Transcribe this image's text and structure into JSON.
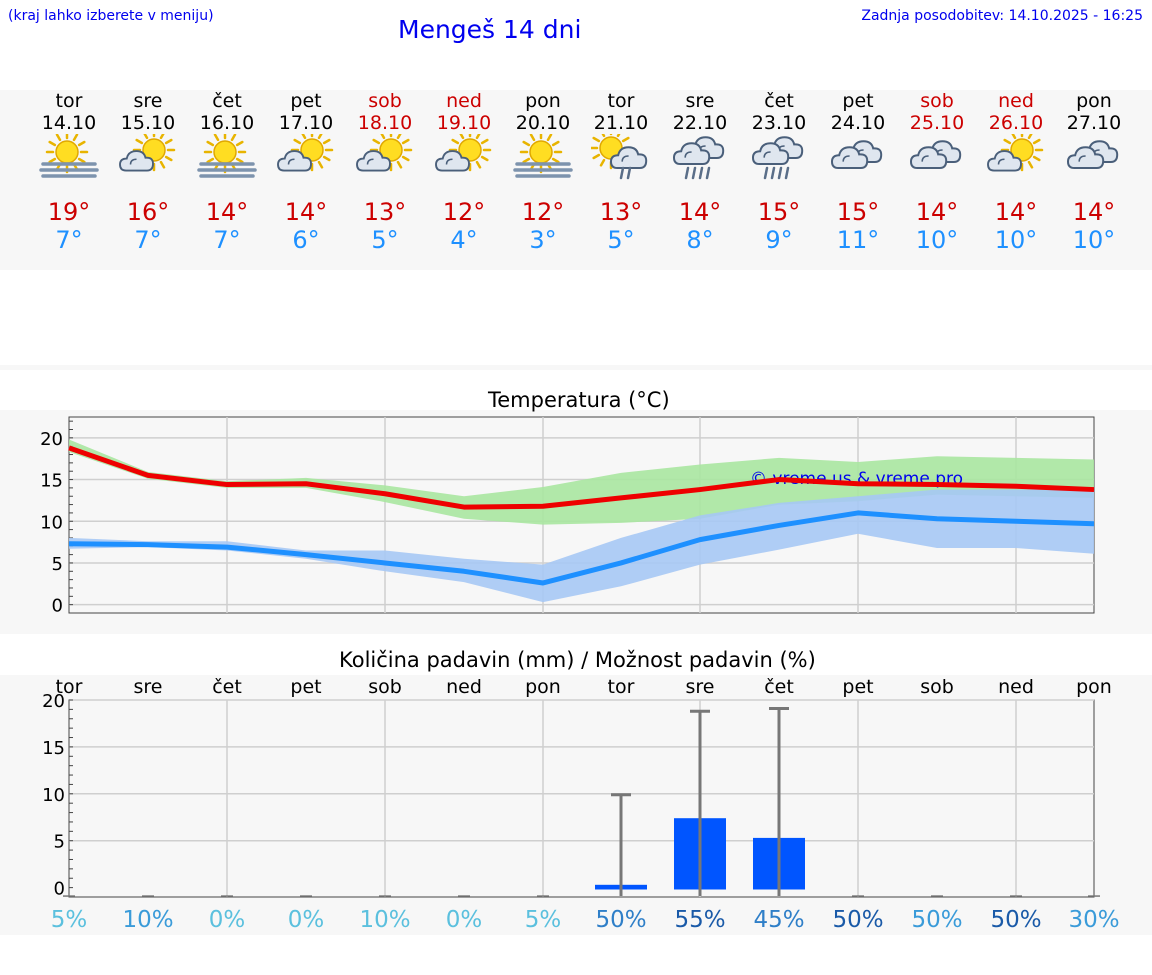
{
  "header": {
    "hint": "(kraj lahko izberete v meniju)",
    "title": "Mengeš 14 dni",
    "updated": "Zadnja posodobitev: 14.10.2025 - 16:25"
  },
  "days": [
    {
      "name": "tor",
      "date": "14.10",
      "weekend": false,
      "icon": "sun-fog-icon",
      "tmax": "19°",
      "tmin": "7°"
    },
    {
      "name": "sre",
      "date": "15.10",
      "weekend": false,
      "icon": "partly-cloudy-icon",
      "tmax": "16°",
      "tmin": "7°"
    },
    {
      "name": "čet",
      "date": "16.10",
      "weekend": false,
      "icon": "sun-fog-icon",
      "tmax": "14°",
      "tmin": "7°"
    },
    {
      "name": "pet",
      "date": "17.10",
      "weekend": false,
      "icon": "partly-cloudy-icon",
      "tmax": "14°",
      "tmin": "6°"
    },
    {
      "name": "sob",
      "date": "18.10",
      "weekend": true,
      "icon": "partly-cloudy-icon",
      "tmax": "13°",
      "tmin": "5°"
    },
    {
      "name": "ned",
      "date": "19.10",
      "weekend": true,
      "icon": "partly-cloudy-icon",
      "tmax": "12°",
      "tmin": "4°"
    },
    {
      "name": "pon",
      "date": "20.10",
      "weekend": false,
      "icon": "sun-fog-icon",
      "tmax": "12°",
      "tmin": "3°"
    },
    {
      "name": "tor",
      "date": "21.10",
      "weekend": false,
      "icon": "sun-cloud-rain-icon",
      "tmax": "13°",
      "tmin": "5°"
    },
    {
      "name": "sre",
      "date": "22.10",
      "weekend": false,
      "icon": "cloud-rain-icon",
      "tmax": "14°",
      "tmin": "8°"
    },
    {
      "name": "čet",
      "date": "23.10",
      "weekend": false,
      "icon": "cloud-rain-icon",
      "tmax": "15°",
      "tmin": "9°"
    },
    {
      "name": "pet",
      "date": "24.10",
      "weekend": false,
      "icon": "cloudy-icon",
      "tmax": "15°",
      "tmin": "11°"
    },
    {
      "name": "sob",
      "date": "25.10",
      "weekend": true,
      "icon": "cloudy-icon",
      "tmax": "14°",
      "tmin": "10°"
    },
    {
      "name": "ned",
      "date": "26.10",
      "weekend": true,
      "icon": "partly-cloudy-icon",
      "tmax": "14°",
      "tmin": "10°"
    },
    {
      "name": "pon",
      "date": "27.10",
      "weekend": false,
      "icon": "cloudy-icon",
      "tmax": "14°",
      "tmin": "10°"
    }
  ],
  "chart_data": [
    {
      "type": "line",
      "title": "Temperatura (°C)",
      "xlabel": "",
      "ylabel": "",
      "ylim": [
        -1,
        22.5
      ],
      "yticks": [
        0,
        5,
        10,
        15,
        20
      ],
      "x": [
        1,
        2,
        3,
        4,
        5,
        6,
        7,
        8,
        9,
        10,
        11,
        12,
        13,
        14
      ],
      "grid": true,
      "watermark": "© vreme.us & vreme.pro",
      "series": [
        {
          "name": "max",
          "color": "#ee0000",
          "values": [
            18.8,
            15.5,
            14.4,
            14.5,
            13.3,
            11.7,
            11.8,
            12.8,
            13.8,
            15.0,
            14.5,
            14.4,
            14.2,
            13.8
          ],
          "band_low": [
            18.3,
            15.1,
            14.0,
            14.0,
            12.3,
            10.3,
            9.6,
            9.8,
            10.3,
            12.0,
            12.4,
            13.2,
            13.0,
            12.8
          ],
          "band_high": [
            19.8,
            15.9,
            14.8,
            15.2,
            14.3,
            13.0,
            14.1,
            15.8,
            16.8,
            17.6,
            17.1,
            17.8,
            17.6,
            17.4
          ],
          "band_color": "#a8e6a0"
        },
        {
          "name": "min",
          "color": "#1e90ff",
          "values": [
            7.3,
            7.2,
            6.9,
            6.0,
            5.0,
            4.0,
            2.6,
            5.0,
            7.8,
            9.5,
            11.0,
            10.3,
            10.0,
            9.7
          ],
          "band_low": [
            6.7,
            6.9,
            6.5,
            5.5,
            4.0,
            2.7,
            0.3,
            2.2,
            4.8,
            6.6,
            8.5,
            6.8,
            6.8,
            6.1
          ],
          "band_high": [
            8.0,
            7.6,
            7.6,
            6.5,
            6.5,
            5.5,
            4.8,
            8.0,
            10.7,
            12.2,
            13.0,
            13.8,
            13.8,
            13.8
          ],
          "band_color": "#a6c8f4"
        }
      ]
    },
    {
      "type": "bar",
      "title": "Količina padavin (mm) / Možnost padavin (%)",
      "categories": [
        "tor",
        "sre",
        "čet",
        "pet",
        "sob",
        "ned",
        "pon",
        "tor",
        "sre",
        "čet",
        "pet",
        "sob",
        "ned",
        "pon"
      ],
      "ylim": [
        -1,
        20
      ],
      "yticks": [
        0,
        5,
        10,
        15,
        20
      ],
      "grid": true,
      "bar_color": "#0055ff",
      "errorbar_color": "#777777",
      "values": [
        0,
        0,
        0,
        0,
        0,
        0,
        0,
        0.3,
        7.4,
        5.3,
        0,
        0,
        0,
        0
      ],
      "error_high": [
        0,
        0,
        0,
        0,
        0,
        0,
        0,
        9.9,
        18.8,
        19.1,
        0,
        0,
        0,
        0
      ],
      "probabilities": [
        "5%",
        "10%",
        "0%",
        "0%",
        "10%",
        "0%",
        "5%",
        "50%",
        "55%",
        "45%",
        "50%",
        "50%",
        "50%",
        "30%"
      ],
      "probability_colors": [
        "#5bc0de",
        "#3a9bd9",
        "#5bc0de",
        "#5bc0de",
        "#5bc0de",
        "#5bc0de",
        "#5bc0de",
        "#2f7fc8",
        "#1a5aa8",
        "#2f7fc8",
        "#1a5aa8",
        "#3a9bd9",
        "#1a5aa8",
        "#3a9bd9"
      ]
    }
  ]
}
